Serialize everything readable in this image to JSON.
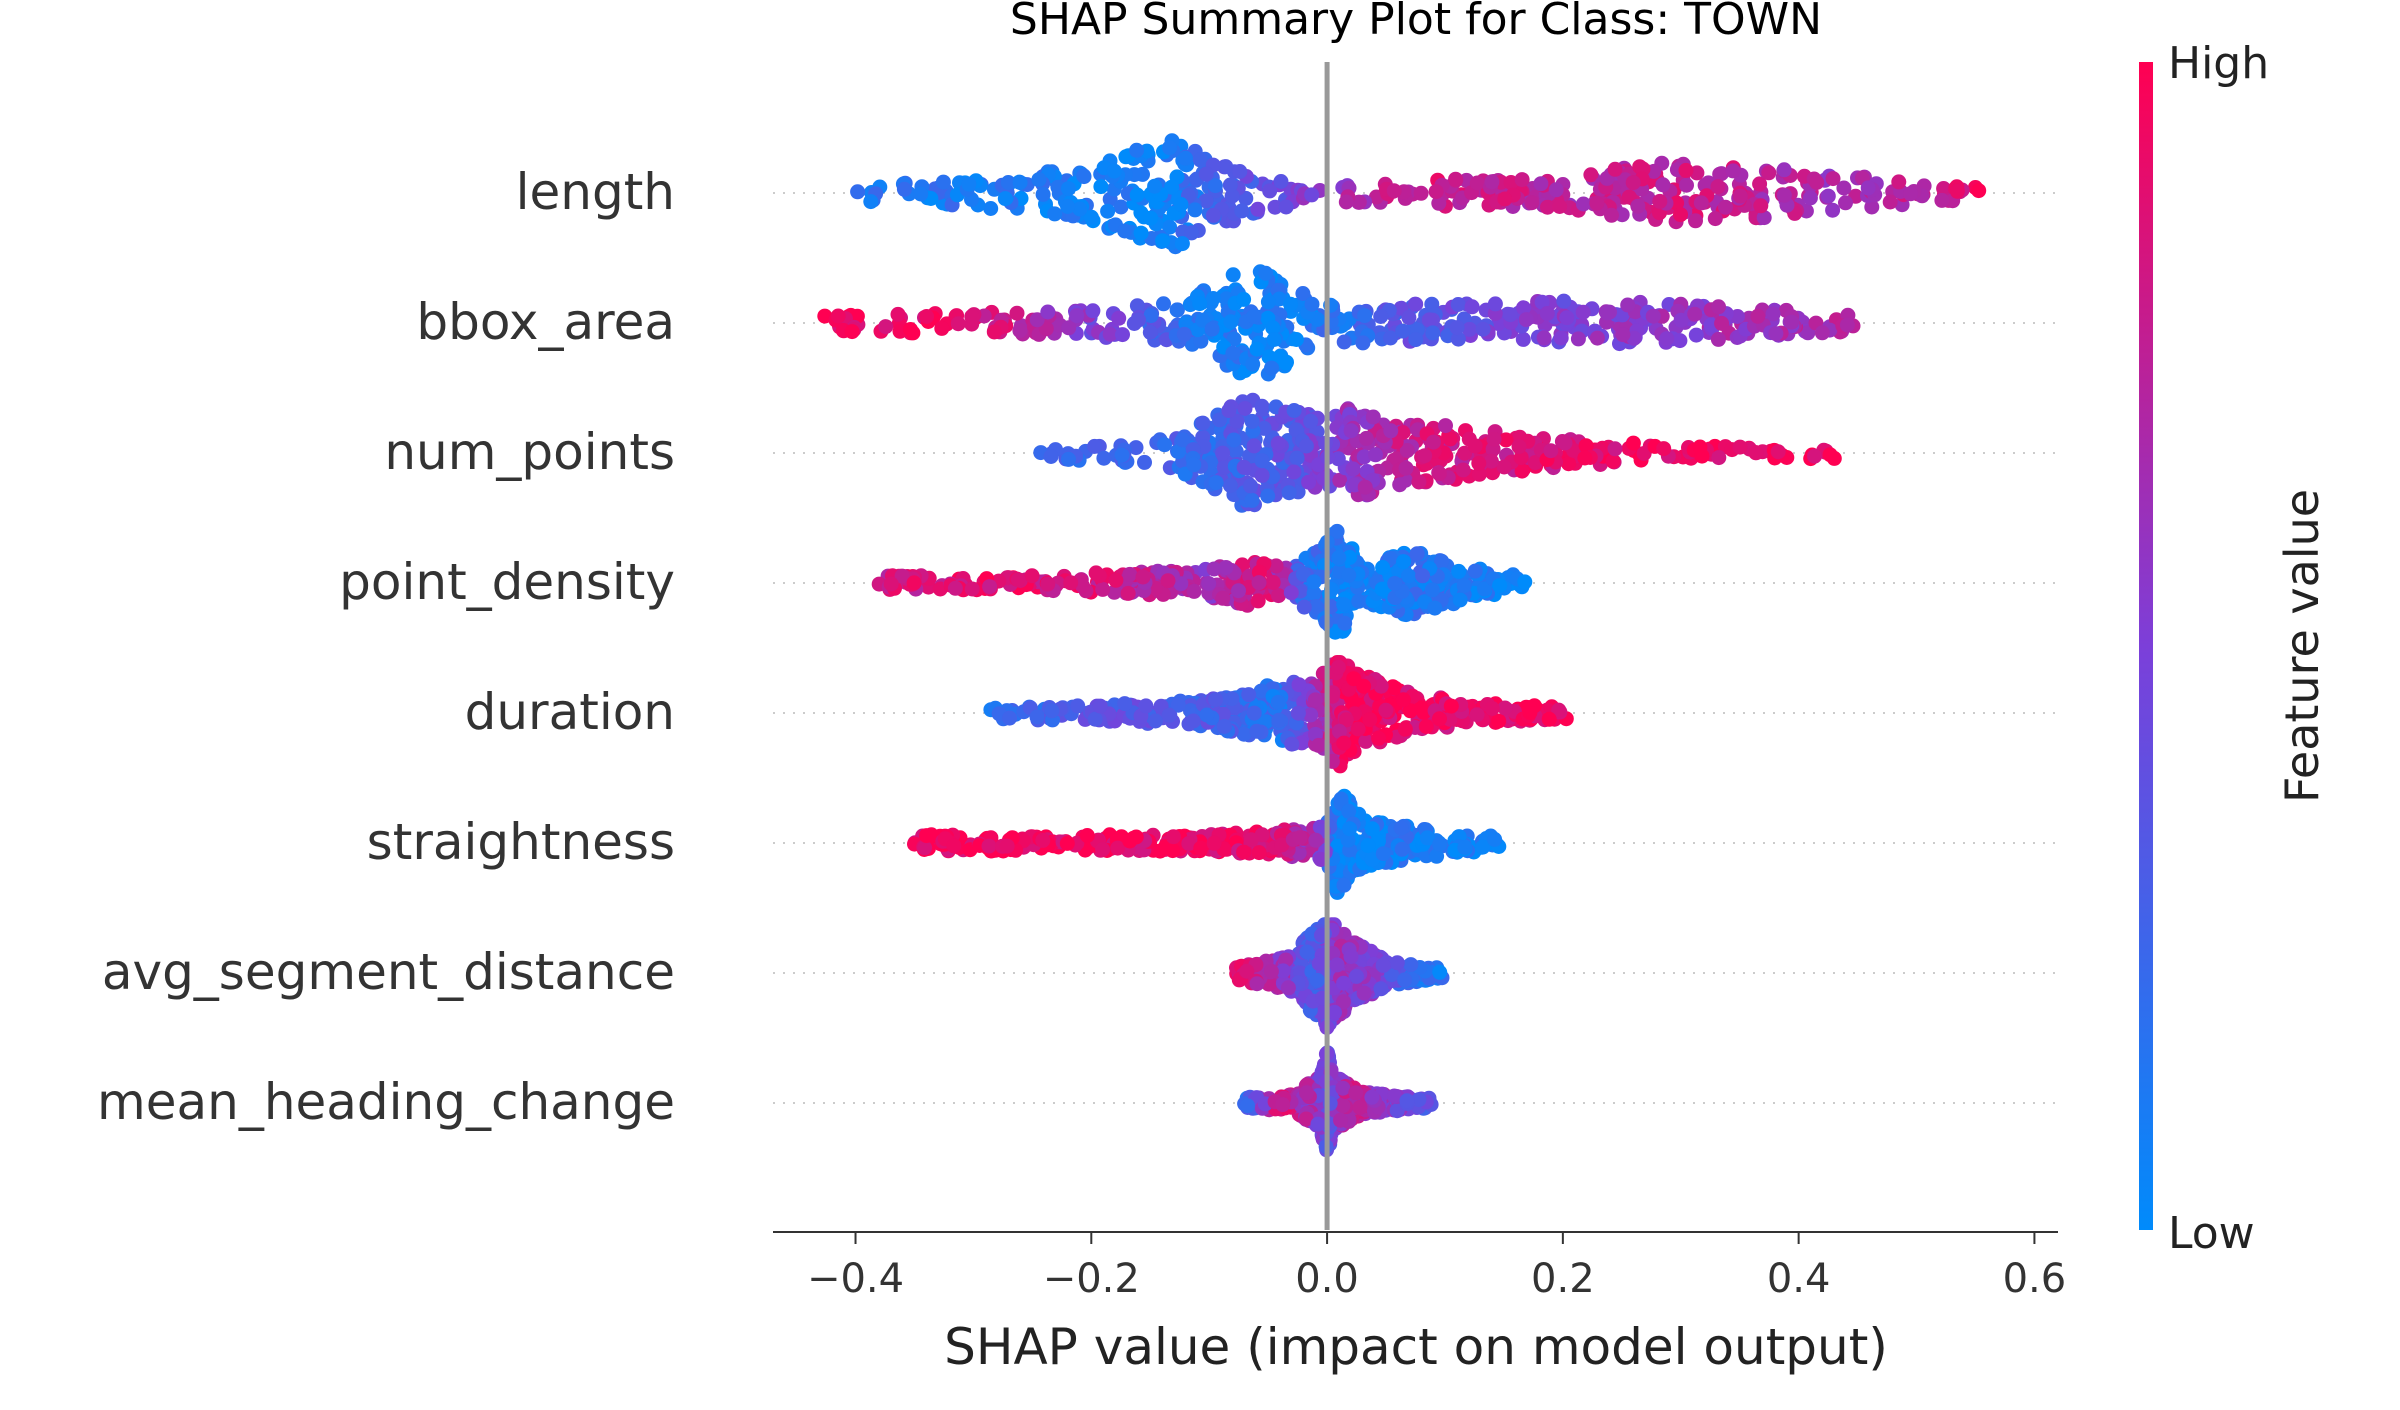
{
  "chart_data": {
    "type": "scatter",
    "subtype": "shap-beeswarm",
    "title": "SHAP Summary Plot for Class: TOWN",
    "xlabel": "SHAP value (impact on model output)",
    "xlim": [
      -0.47,
      0.62
    ],
    "xticks": [
      -0.4,
      -0.2,
      0.0,
      0.2,
      0.4,
      0.6
    ],
    "xtick_labels": [
      "−0.4",
      "−0.2",
      "0.0",
      "0.2",
      "0.4",
      "0.6"
    ],
    "zero_line": 0.0,
    "features": [
      {
        "name": "length",
        "min": -0.4,
        "max": 0.56,
        "density": [
          [
            -0.4,
            0.15
          ],
          [
            -0.3,
            0.25
          ],
          [
            -0.22,
            0.45
          ],
          [
            -0.16,
            0.85
          ],
          [
            -0.13,
            1.0
          ],
          [
            -0.1,
            0.7
          ],
          [
            -0.05,
            0.3
          ],
          [
            0.0,
            0.2
          ],
          [
            0.05,
            0.2
          ],
          [
            0.1,
            0.25
          ],
          [
            0.2,
            0.3
          ],
          [
            0.28,
            0.55
          ],
          [
            0.35,
            0.5
          ],
          [
            0.45,
            0.3
          ],
          [
            0.56,
            0.1
          ]
        ],
        "color_stops": [
          [
            -0.4,
            0.15
          ],
          [
            -0.15,
            0.05
          ],
          [
            -0.05,
            0.4
          ],
          [
            0.08,
            0.85
          ],
          [
            0.2,
            0.7
          ],
          [
            0.3,
            0.8
          ],
          [
            0.45,
            0.65
          ],
          [
            0.56,
            0.9
          ]
        ]
      },
      {
        "name": "bbox_area",
        "min": -0.43,
        "max": 0.45,
        "density": [
          [
            -0.43,
            0.15
          ],
          [
            -0.3,
            0.2
          ],
          [
            -0.2,
            0.25
          ],
          [
            -0.12,
            0.4
          ],
          [
            -0.08,
            0.95
          ],
          [
            -0.05,
            1.0
          ],
          [
            -0.02,
            0.6
          ],
          [
            0.0,
            0.4
          ],
          [
            0.05,
            0.35
          ],
          [
            0.15,
            0.35
          ],
          [
            0.21,
            0.45
          ],
          [
            0.3,
            0.35
          ],
          [
            0.45,
            0.15
          ]
        ],
        "color_stops": [
          [
            -0.43,
            0.95
          ],
          [
            -0.3,
            0.9
          ],
          [
            -0.2,
            0.5
          ],
          [
            -0.1,
            0.1
          ],
          [
            -0.03,
            0.05
          ],
          [
            0.05,
            0.3
          ],
          [
            0.15,
            0.45
          ],
          [
            0.25,
            0.55
          ],
          [
            0.45,
            0.7
          ]
        ]
      },
      {
        "name": "num_points",
        "min": -0.25,
        "max": 0.44,
        "density": [
          [
            -0.25,
            0.1
          ],
          [
            -0.15,
            0.2
          ],
          [
            -0.1,
            0.6
          ],
          [
            -0.07,
            1.0
          ],
          [
            -0.03,
            0.8
          ],
          [
            0.0,
            0.6
          ],
          [
            0.02,
            0.85
          ],
          [
            0.06,
            0.6
          ],
          [
            0.12,
            0.45
          ],
          [
            0.2,
            0.25
          ],
          [
            0.3,
            0.15
          ],
          [
            0.44,
            0.1
          ]
        ],
        "color_stops": [
          [
            -0.25,
            0.2
          ],
          [
            -0.1,
            0.25
          ],
          [
            -0.03,
            0.35
          ],
          [
            0.02,
            0.6
          ],
          [
            0.08,
            0.8
          ],
          [
            0.15,
            0.85
          ],
          [
            0.3,
            0.95
          ],
          [
            0.44,
            0.95
          ]
        ]
      },
      {
        "name": "point_density",
        "min": -0.38,
        "max": 0.17,
        "density": [
          [
            -0.38,
            0.15
          ],
          [
            -0.28,
            0.12
          ],
          [
            -0.25,
            0.15
          ],
          [
            -0.1,
            0.25
          ],
          [
            -0.07,
            0.45
          ],
          [
            -0.03,
            0.25
          ],
          [
            0.01,
            1.0
          ],
          [
            0.03,
            0.35
          ],
          [
            0.07,
            0.6
          ],
          [
            0.12,
            0.3
          ],
          [
            0.17,
            0.1
          ]
        ],
        "color_stops": [
          [
            -0.38,
            0.8
          ],
          [
            -0.28,
            0.9
          ],
          [
            -0.2,
            0.85
          ],
          [
            -0.1,
            0.6
          ],
          [
            -0.05,
            0.9
          ],
          [
            -0.02,
            0.2
          ],
          [
            0.02,
            0.05
          ],
          [
            0.08,
            0.15
          ],
          [
            0.17,
            0.05
          ]
        ]
      },
      {
        "name": "duration",
        "min": -0.29,
        "max": 0.21,
        "density": [
          [
            -0.29,
            0.1
          ],
          [
            -0.2,
            0.15
          ],
          [
            -0.1,
            0.25
          ],
          [
            -0.04,
            0.55
          ],
          [
            -0.01,
            0.6
          ],
          [
            0.01,
            1.0
          ],
          [
            0.03,
            0.7
          ],
          [
            0.06,
            0.45
          ],
          [
            0.12,
            0.2
          ],
          [
            0.21,
            0.1
          ]
        ],
        "color_stops": [
          [
            -0.29,
            0.1
          ],
          [
            -0.2,
            0.35
          ],
          [
            -0.1,
            0.3
          ],
          [
            -0.04,
            0.15
          ],
          [
            0.0,
            0.75
          ],
          [
            0.02,
            0.95
          ],
          [
            0.1,
            0.9
          ],
          [
            0.21,
            0.95
          ]
        ]
      },
      {
        "name": "straightness",
        "min": -0.35,
        "max": 0.15,
        "density": [
          [
            -0.35,
            0.15
          ],
          [
            -0.28,
            0.15
          ],
          [
            -0.2,
            0.15
          ],
          [
            -0.1,
            0.15
          ],
          [
            -0.03,
            0.25
          ],
          [
            0.0,
            0.35
          ],
          [
            0.01,
            1.0
          ],
          [
            0.03,
            0.45
          ],
          [
            0.07,
            0.3
          ],
          [
            0.15,
            0.1
          ]
        ],
        "color_stops": [
          [
            -0.35,
            0.95
          ],
          [
            -0.2,
            0.95
          ],
          [
            -0.05,
            0.9
          ],
          [
            -0.01,
            0.6
          ],
          [
            0.01,
            0.05
          ],
          [
            0.08,
            0.1
          ],
          [
            0.15,
            0.05
          ]
        ]
      },
      {
        "name": "avg_segment_distance",
        "min": -0.08,
        "max": 0.1,
        "density": [
          [
            -0.08,
            0.1
          ],
          [
            -0.03,
            0.35
          ],
          [
            -0.01,
            0.8
          ],
          [
            0.0,
            1.0
          ],
          [
            0.02,
            0.6
          ],
          [
            0.05,
            0.25
          ],
          [
            0.1,
            0.08
          ]
        ],
        "color_stops": [
          [
            -0.08,
            0.9
          ],
          [
            -0.04,
            0.6
          ],
          [
            -0.01,
            0.3
          ],
          [
            0.01,
            0.6
          ],
          [
            0.04,
            0.5
          ],
          [
            0.07,
            0.2
          ],
          [
            0.1,
            0.1
          ]
        ]
      },
      {
        "name": "mean_heading_change",
        "min": -0.07,
        "max": 0.09,
        "density": [
          [
            -0.07,
            0.1
          ],
          [
            -0.03,
            0.15
          ],
          [
            -0.005,
            0.5
          ],
          [
            0.0,
            1.0
          ],
          [
            0.005,
            0.5
          ],
          [
            0.03,
            0.2
          ],
          [
            0.09,
            0.08
          ]
        ],
        "color_stops": [
          [
            -0.07,
            0.2
          ],
          [
            -0.04,
            0.85
          ],
          [
            -0.01,
            0.6
          ],
          [
            0.0,
            0.4
          ],
          [
            0.02,
            0.8
          ],
          [
            0.06,
            0.5
          ],
          [
            0.09,
            0.3
          ]
        ]
      }
    ],
    "colorbar": {
      "label": "Feature value",
      "high_label": "High",
      "low_label": "Low",
      "low_color": "#008bfb",
      "mid_color": "#7c3fd9",
      "high_color": "#ff0052"
    },
    "grid": false,
    "legend": "colorbar-right"
  }
}
